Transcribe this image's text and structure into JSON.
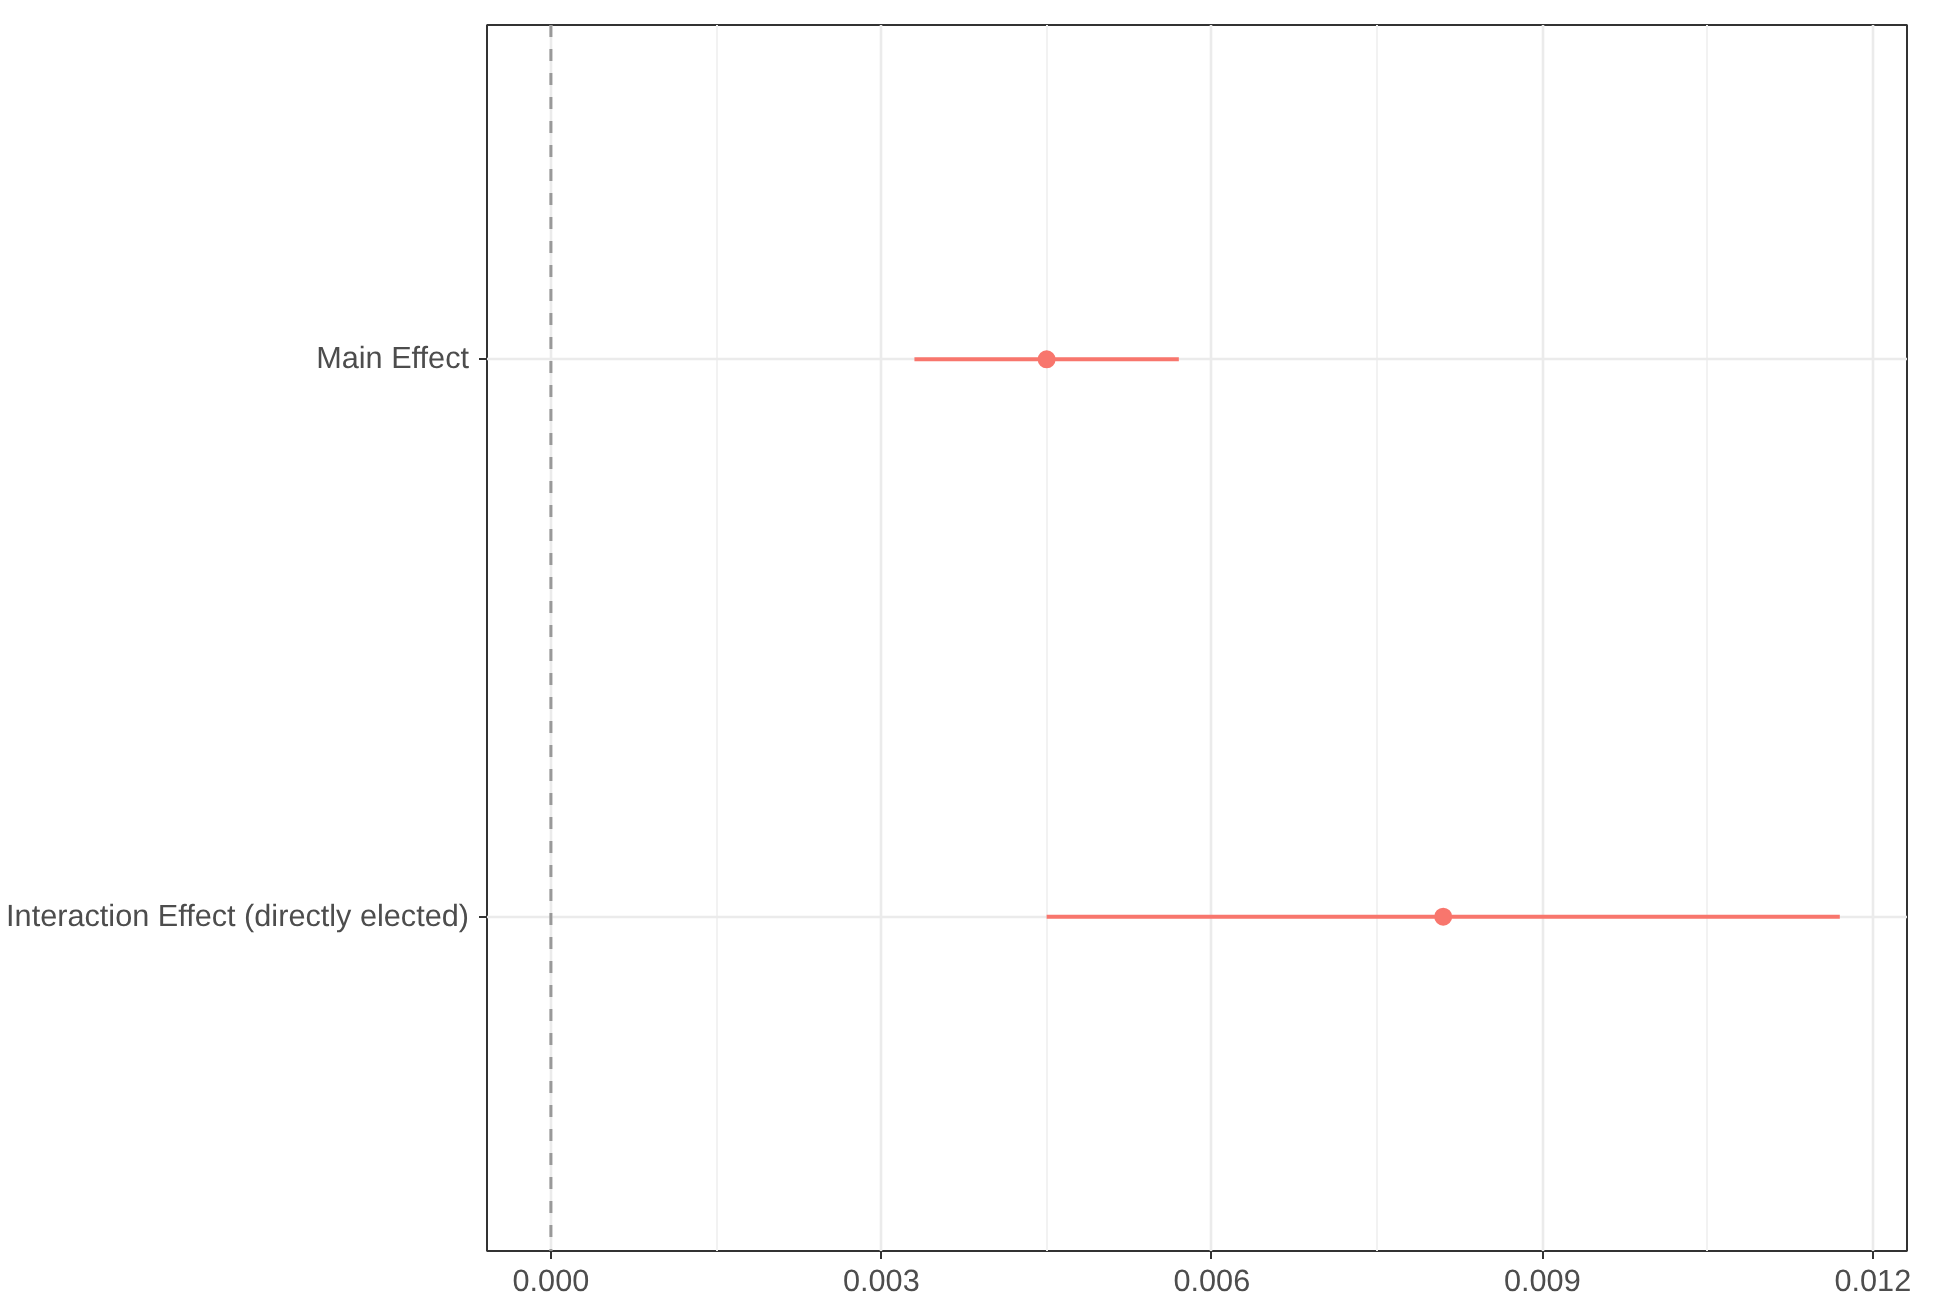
{
  "chart_data": {
    "type": "scatter",
    "orientation": "horizontal",
    "categories": [
      "Main Effect",
      "Interaction Effect (directly elected)"
    ],
    "values": [
      0.0045,
      0.0081
    ],
    "errors": [
      [
        0.0033,
        0.0057
      ],
      [
        0.0045,
        0.0117
      ]
    ],
    "color": "#f8766d",
    "xlim": [
      -0.00058,
      0.01231
    ],
    "xticks": [
      {
        "value": 0,
        "label": "0.000"
      },
      {
        "value": 0.003,
        "label": "0.003"
      },
      {
        "value": 0.006,
        "label": "0.006"
      },
      {
        "value": 0.009,
        "label": "0.009"
      },
      {
        "value": 0.012,
        "label": "0.012"
      }
    ],
    "ref_lines": [
      {
        "axis": "x",
        "value": 0,
        "color": "#999999",
        "line_style": "dashed"
      }
    ],
    "grid": true,
    "marker": "circle"
  }
}
